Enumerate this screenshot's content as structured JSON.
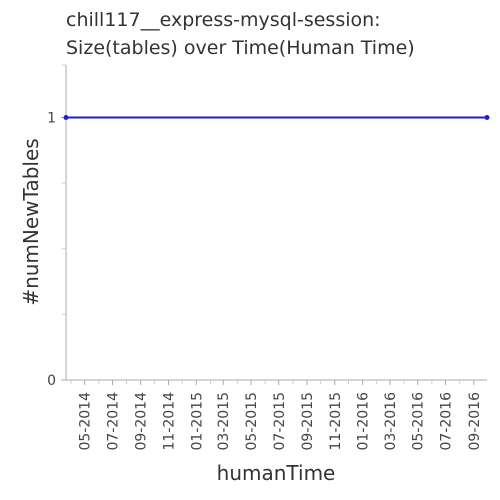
{
  "chart_data": {
    "type": "line",
    "title_line1": "chill117__express-mysql-session:",
    "title_line2": "Size(tables) over Time(Human Time)",
    "xlabel": "humanTime",
    "ylabel": "#numNewTables",
    "x_tick_labels": [
      "05-2014",
      "07-2014",
      "09-2014",
      "11-2014",
      "01-2015",
      "03-2015",
      "05-2015",
      "07-2015",
      "09-2015",
      "11-2015",
      "01-2016",
      "03-2016",
      "05-2016",
      "07-2016",
      "09-2016"
    ],
    "y_tick_labels": [
      "0",
      "1"
    ],
    "ylim": [
      0,
      1.2
    ],
    "xlim": [
      "2014-03-21",
      "2016-09-30"
    ],
    "series": [
      {
        "color": "#1f1fd0",
        "points": [
          {
            "x": "2014-03-21",
            "y": 1
          },
          {
            "x": "2016-09-30",
            "y": 1
          }
        ]
      }
    ],
    "grid": false,
    "legend": "none"
  }
}
